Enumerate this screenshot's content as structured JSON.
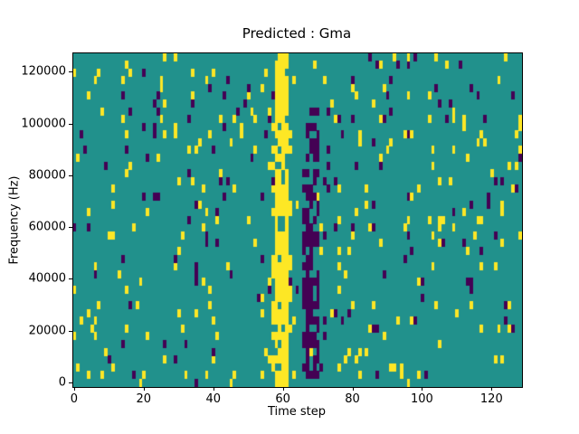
{
  "chart_data": {
    "type": "heatmap",
    "title": "Predicted : Gma",
    "xlabel": "Time step",
    "ylabel": "Frequency (Hz)",
    "x_ticks": [
      0,
      20,
      40,
      60,
      80,
      100,
      120
    ],
    "y_ticks": [
      0,
      20000,
      40000,
      60000,
      80000,
      100000,
      120000
    ],
    "x_range": [
      0,
      129
    ],
    "y_range": [
      0,
      129000
    ],
    "grid": {
      "cols": 129,
      "rows": 43
    },
    "legend": "none",
    "colors": {
      "background": "#21918c",
      "yellow": "#fde725",
      "purple": "#440154",
      "axes": "#000000",
      "figure_background": "#ffffff"
    },
    "scatter": {
      "seed": 42,
      "yellow_density": 0.045,
      "purple_density": 0.035
    },
    "bands": [
      {
        "color": "#fde725",
        "x_start": 58,
        "x_end": 61,
        "y_start_frac": 0.0,
        "y_end_frac": 1.0,
        "coverage": 0.85
      },
      {
        "color": "#fde725",
        "x_start": 57,
        "x_end": 62,
        "y_start_frac": 0.03,
        "y_end_frac": 0.75,
        "coverage": 0.3
      },
      {
        "color": "#440154",
        "x_start": 66,
        "x_end": 70,
        "y_start_frac": 0.02,
        "y_end_frac": 0.85,
        "coverage": 0.5
      },
      {
        "color": "#440154",
        "x_start": 67,
        "x_end": 68,
        "y_start_frac": 0.05,
        "y_end_frac": 0.6,
        "coverage": 0.8
      }
    ]
  }
}
